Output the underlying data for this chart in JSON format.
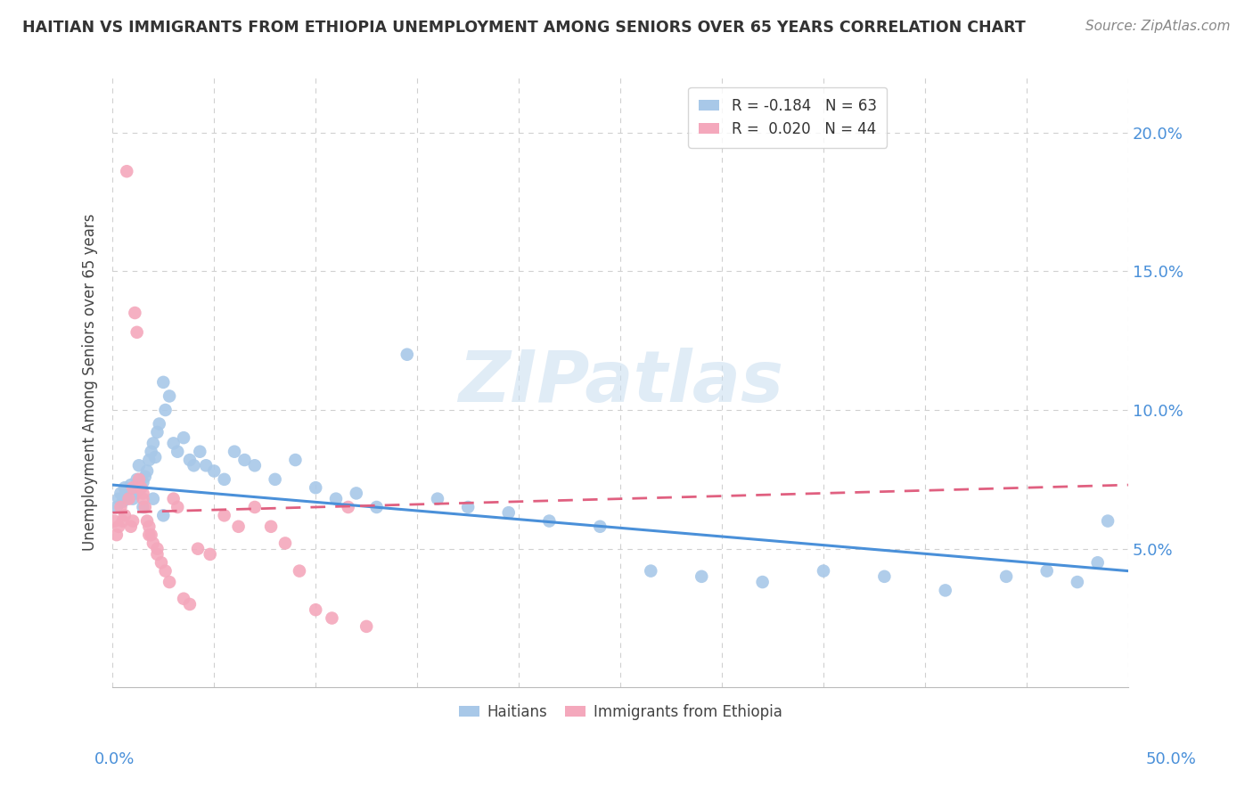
{
  "title": "HAITIAN VS IMMIGRANTS FROM ETHIOPIA UNEMPLOYMENT AMONG SENIORS OVER 65 YEARS CORRELATION CHART",
  "source": "Source: ZipAtlas.com",
  "ylabel": "Unemployment Among Seniors over 65 years",
  "xlim": [
    0.0,
    0.5
  ],
  "ylim": [
    0.0,
    0.22
  ],
  "ytick_labels_right": [
    "5.0%",
    "10.0%",
    "15.0%",
    "20.0%"
  ],
  "ytick_vals": [
    0.05,
    0.1,
    0.15,
    0.2
  ],
  "haitians_color": "#a8c8e8",
  "ethiopia_color": "#f4a8bc",
  "haitians_line_color": "#4a90d9",
  "ethiopia_line_color": "#e06080",
  "watermark": "ZIPatlas",
  "background_color": "#ffffff",
  "grid_color": "#d0d0d0",
  "haitians_x": [
    0.002,
    0.003,
    0.004,
    0.005,
    0.006,
    0.007,
    0.008,
    0.009,
    0.01,
    0.011,
    0.012,
    0.013,
    0.014,
    0.015,
    0.016,
    0.017,
    0.018,
    0.019,
    0.02,
    0.021,
    0.022,
    0.023,
    0.025,
    0.026,
    0.028,
    0.03,
    0.032,
    0.035,
    0.038,
    0.04,
    0.043,
    0.046,
    0.05,
    0.055,
    0.06,
    0.065,
    0.07,
    0.08,
    0.09,
    0.1,
    0.11,
    0.12,
    0.13,
    0.145,
    0.16,
    0.175,
    0.195,
    0.215,
    0.24,
    0.265,
    0.29,
    0.32,
    0.35,
    0.38,
    0.41,
    0.44,
    0.46,
    0.475,
    0.485,
    0.49,
    0.015,
    0.02,
    0.025
  ],
  "haitians_y": [
    0.065,
    0.068,
    0.07,
    0.067,
    0.072,
    0.069,
    0.071,
    0.073,
    0.068,
    0.07,
    0.075,
    0.08,
    0.072,
    0.074,
    0.076,
    0.078,
    0.082,
    0.085,
    0.088,
    0.083,
    0.092,
    0.095,
    0.11,
    0.1,
    0.105,
    0.088,
    0.085,
    0.09,
    0.082,
    0.08,
    0.085,
    0.08,
    0.078,
    0.075,
    0.085,
    0.082,
    0.08,
    0.075,
    0.082,
    0.072,
    0.068,
    0.07,
    0.065,
    0.12,
    0.068,
    0.065,
    0.063,
    0.06,
    0.058,
    0.042,
    0.04,
    0.038,
    0.042,
    0.04,
    0.035,
    0.04,
    0.042,
    0.038,
    0.045,
    0.06,
    0.065,
    0.068,
    0.062
  ],
  "ethiopia_x": [
    0.001,
    0.002,
    0.003,
    0.004,
    0.005,
    0.006,
    0.007,
    0.008,
    0.009,
    0.01,
    0.011,
    0.012,
    0.013,
    0.014,
    0.015,
    0.016,
    0.017,
    0.018,
    0.019,
    0.02,
    0.022,
    0.024,
    0.026,
    0.028,
    0.03,
    0.032,
    0.035,
    0.038,
    0.042,
    0.048,
    0.055,
    0.062,
    0.07,
    0.078,
    0.085,
    0.092,
    0.1,
    0.108,
    0.116,
    0.125,
    0.015,
    0.01,
    0.018,
    0.022
  ],
  "ethiopia_y": [
    0.06,
    0.055,
    0.058,
    0.065,
    0.06,
    0.062,
    0.186,
    0.068,
    0.058,
    0.06,
    0.135,
    0.128,
    0.075,
    0.072,
    0.068,
    0.065,
    0.06,
    0.058,
    0.055,
    0.052,
    0.048,
    0.045,
    0.042,
    0.038,
    0.068,
    0.065,
    0.032,
    0.03,
    0.05,
    0.048,
    0.062,
    0.058,
    0.065,
    0.058,
    0.052,
    0.042,
    0.028,
    0.025,
    0.065,
    0.022,
    0.07,
    0.072,
    0.055,
    0.05
  ],
  "haitians_line_x": [
    0.0,
    0.5
  ],
  "haitians_line_y": [
    0.073,
    0.042
  ],
  "ethiopia_line_x": [
    0.0,
    0.5
  ],
  "ethiopia_line_y": [
    0.063,
    0.073
  ]
}
